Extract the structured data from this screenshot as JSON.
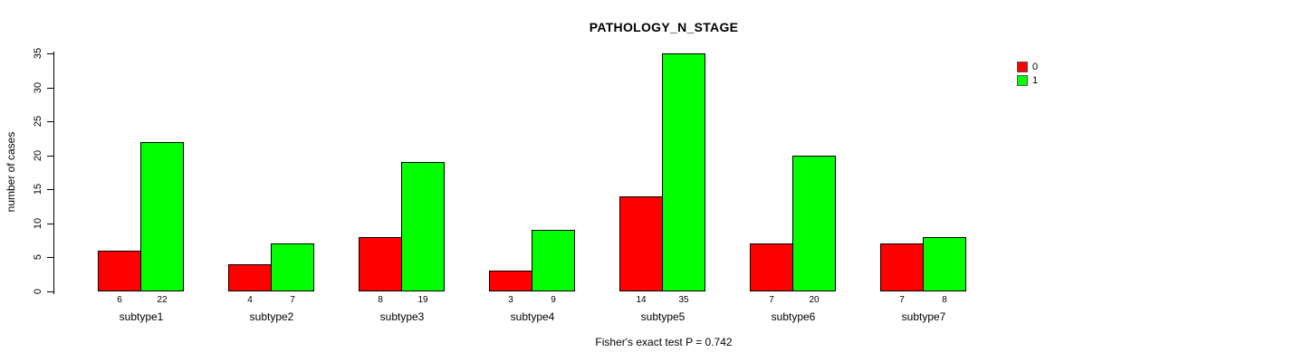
{
  "chart_data": {
    "type": "bar",
    "title": "PATHOLOGY_N_STAGE",
    "xlabel": "",
    "ylabel": "number of cases",
    "categories": [
      "subtype1",
      "subtype2",
      "subtype3",
      "subtype4",
      "subtype5",
      "subtype6",
      "subtype7"
    ],
    "series": [
      {
        "name": "0",
        "color": "#FF0000",
        "values": [
          6,
          4,
          8,
          3,
          14,
          7,
          7
        ]
      },
      {
        "name": "1",
        "color": "#00FF00",
        "values": [
          22,
          7,
          19,
          9,
          35,
          20,
          8
        ]
      }
    ],
    "ylim": [
      0,
      35
    ],
    "yticks": [
      0,
      5,
      10,
      15,
      20,
      25,
      30,
      35
    ],
    "grid": false,
    "legend_position": "top-right",
    "bar_value_labels": true,
    "annotation": "Fisher's exact test P = 0.742",
    "axis_color": "#000000",
    "text_color": "#000000",
    "background": "#FFFFFF"
  }
}
